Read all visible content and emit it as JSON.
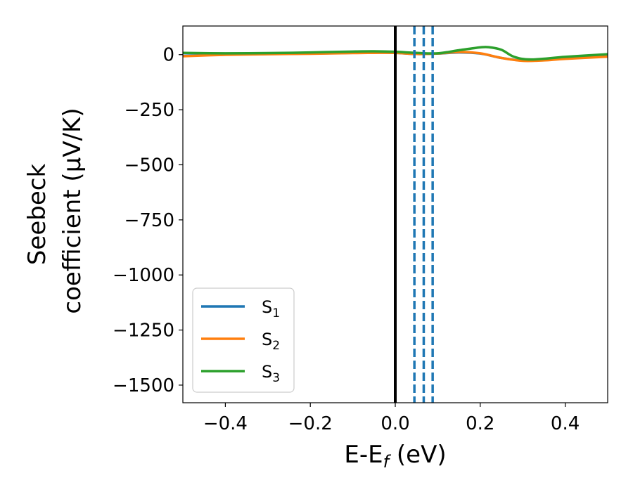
{
  "chart_data": {
    "type": "line",
    "xlabel": "E-E_f (eV)",
    "xlabel_parts": {
      "base": "E-E",
      "sub": "f",
      "rest": " (eV)"
    },
    "ylabel_line1": "Seebeck",
    "ylabel_line2": "coefficient  (μV/K)",
    "xlim": [
      -0.5,
      0.5
    ],
    "ylim": [
      -1580,
      130
    ],
    "xticks": [
      -0.4,
      -0.2,
      0.0,
      0.2,
      0.4
    ],
    "xtick_labels": [
      "−0.4",
      "−0.2",
      "0.0",
      "0.2",
      "0.4"
    ],
    "yticks": [
      0,
      -250,
      -500,
      -750,
      -1000,
      -1250,
      -1500
    ],
    "ytick_labels": [
      "0",
      "−250",
      "−500",
      "−750",
      "−1000",
      "−1250",
      "−1500"
    ],
    "fermi_line_x": 0.0,
    "dashed_lines_x": [
      0.045,
      0.067,
      0.088
    ],
    "legend_location": "lower-left",
    "series": [
      {
        "name": "S1",
        "label_base": "S",
        "label_sub": "1",
        "color": "#1f77b4",
        "x": [
          -0.5,
          -0.4,
          -0.3,
          -0.2,
          -0.1,
          -0.05,
          0.0,
          0.05,
          0.1,
          0.15,
          0.2,
          0.25,
          0.3,
          0.35,
          0.4,
          0.5
        ],
        "y": [
          -5,
          0,
          3,
          5,
          8,
          9,
          8,
          3,
          5,
          10,
          5,
          -15,
          -27,
          -25,
          -18,
          -8
        ]
      },
      {
        "name": "S2",
        "label_base": "S",
        "label_sub": "2",
        "color": "#ff7f0e",
        "x": [
          -0.5,
          -0.4,
          -0.3,
          -0.2,
          -0.1,
          -0.05,
          0.0,
          0.05,
          0.1,
          0.15,
          0.2,
          0.25,
          0.3,
          0.35,
          0.4,
          0.5
        ],
        "y": [
          -7,
          -1,
          2,
          4,
          7,
          8,
          8,
          3,
          5,
          12,
          6,
          -15,
          -28,
          -26,
          -19,
          -9
        ]
      },
      {
        "name": "S3",
        "label_base": "S",
        "label_sub": "3",
        "color": "#2ca02c",
        "x": [
          -0.5,
          -0.4,
          -0.3,
          -0.2,
          -0.1,
          -0.05,
          0.0,
          0.05,
          0.1,
          0.15,
          0.2,
          0.22,
          0.25,
          0.28,
          0.32,
          0.4,
          0.5
        ],
        "y": [
          8,
          6,
          7,
          10,
          14,
          15,
          13,
          8,
          6,
          20,
          33,
          34,
          22,
          -10,
          -22,
          -10,
          2
        ]
      }
    ]
  }
}
